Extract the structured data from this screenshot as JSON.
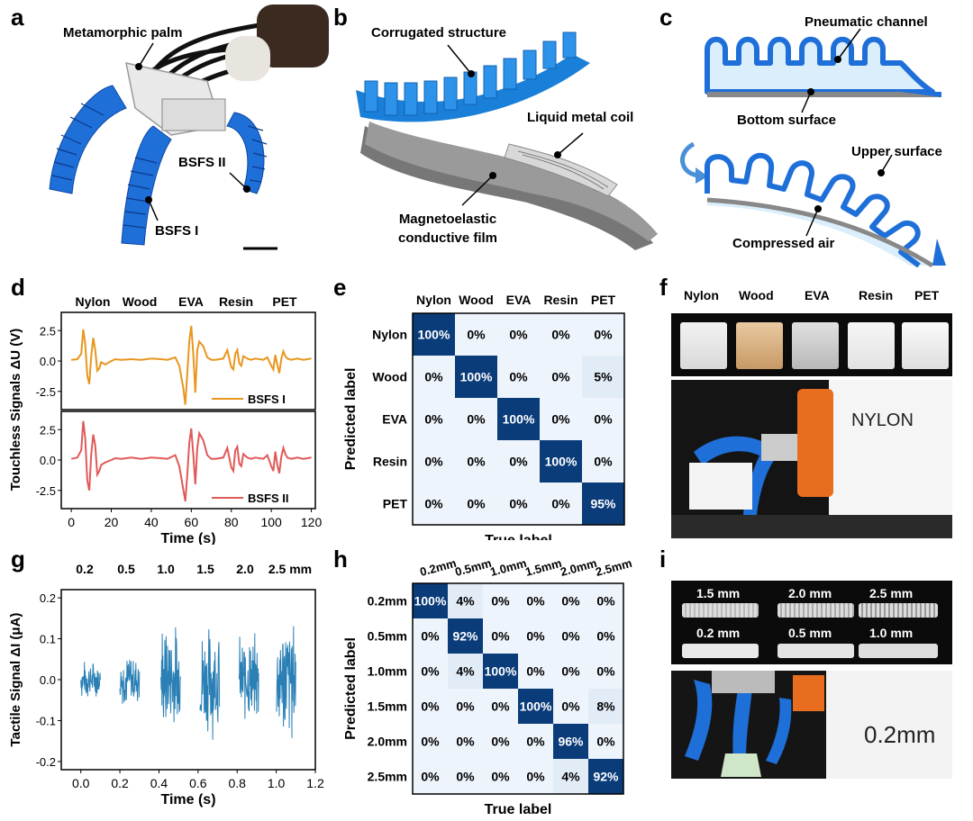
{
  "panels": {
    "a": "a",
    "b": "b",
    "c": "c",
    "d": "d",
    "e": "e",
    "f": "f",
    "g": "g",
    "h": "h",
    "i": "i"
  },
  "panel_a": {
    "metamorphic_palm": "Metamorphic palm",
    "bsfs_ii": "BSFS II",
    "bsfs_i": "BSFS I"
  },
  "panel_b": {
    "corrugated": "Corrugated structure",
    "liquid_metal": "Liquid metal coil",
    "film_line1": "Magnetoelastic",
    "film_line2": "conductive film"
  },
  "panel_c": {
    "pneumatic": "Pneumatic channel",
    "bottom": "Bottom surface",
    "upper": "Upper surface",
    "compressed": "Compressed air"
  },
  "panel_f": {
    "materials": [
      "Nylon",
      "Wood",
      "EVA",
      "Resin",
      "PET"
    ],
    "sign": "NYLON"
  },
  "panel_i": {
    "top_row": [
      "1.5 mm",
      "2.0 mm",
      "2.5 mm"
    ],
    "bottom_row": [
      "0.2 mm",
      "0.5 mm",
      "1.0 mm"
    ],
    "sign": "0.2mm"
  },
  "colors": {
    "bsfs_i": "#E8961E",
    "bsfs_ii": "#E05A5A",
    "tactile": "#2A7FB5",
    "matrix_dark": "#0B3C7A",
    "matrix_light": "#EEF4FB",
    "gripper_blue": "#1F6FD9"
  },
  "chart_data": [
    {
      "type": "line",
      "panel": "d",
      "top_labels": [
        "Nylon",
        "Wood",
        "EVA",
        "Resin",
        "PET"
      ],
      "ylabel": "Touchless Signals ΔU (V)",
      "xlabel": "Time (s)",
      "xlim": [
        -5,
        122
      ],
      "xticks": [
        "0",
        "20",
        "40",
        "60",
        "80",
        "100",
        "120"
      ],
      "subplots": [
        {
          "name": "BSFS I",
          "ylim": [
            -4,
            4
          ],
          "yticks": [
            "2.5",
            "0.0",
            "-2.5"
          ],
          "x": [
            0,
            3,
            5,
            6,
            7,
            8,
            9,
            10,
            11,
            12,
            13,
            14,
            15,
            17,
            20,
            22,
            25,
            30,
            35,
            40,
            45,
            48,
            52,
            54,
            56,
            57,
            58,
            59,
            60,
            61,
            62,
            63,
            64,
            66,
            68,
            70,
            72,
            76,
            78,
            80,
            81,
            82,
            83,
            84,
            85,
            86,
            88,
            90,
            92,
            96,
            98,
            100,
            101,
            102,
            103,
            104,
            105,
            106,
            107,
            108,
            110,
            113,
            116,
            120
          ],
          "values": [
            0.1,
            0.15,
            0.6,
            2.6,
            1.4,
            -1.2,
            -1.9,
            0.4,
            1.9,
            0.9,
            -0.8,
            -0.6,
            -0.1,
            -0.3,
            0.0,
            0.15,
            0.1,
            0.15,
            0.1,
            0.2,
            0.15,
            0.1,
            0.3,
            -0.4,
            -2.2,
            -3.6,
            -1.0,
            1.6,
            2.9,
            0.5,
            -2.6,
            0.9,
            1.6,
            1.2,
            0.3,
            0.1,
            0.1,
            0.2,
            0.9,
            -0.5,
            -0.7,
            0.6,
            0.9,
            -0.2,
            -0.4,
            0.4,
            0.2,
            0.1,
            0.2,
            0.1,
            0.3,
            -0.4,
            -0.7,
            0.5,
            -0.3,
            -1.0,
            0.2,
            0.8,
            0.4,
            0.2,
            0.1,
            0.2,
            0.1,
            0.2
          ]
        },
        {
          "name": "BSFS II",
          "ylim": [
            -4,
            4
          ],
          "yticks": [
            "2.5",
            "0.0",
            "-2.5"
          ],
          "x": [
            0,
            3,
            5,
            6,
            7,
            8,
            9,
            10,
            11,
            12,
            13,
            14,
            15,
            17,
            20,
            22,
            25,
            30,
            35,
            40,
            45,
            48,
            52,
            54,
            56,
            57,
            58,
            59,
            60,
            61,
            62,
            63,
            64,
            66,
            68,
            70,
            72,
            76,
            78,
            80,
            81,
            82,
            83,
            84,
            85,
            86,
            88,
            90,
            92,
            96,
            98,
            100,
            101,
            102,
            103,
            104,
            105,
            106,
            107,
            108,
            110,
            113,
            116,
            120
          ],
          "values": [
            0.1,
            0.2,
            0.8,
            3.2,
            1.8,
            -1.7,
            -2.5,
            0.5,
            2.1,
            1.2,
            -1.2,
            -0.9,
            -0.4,
            -0.2,
            0.0,
            0.15,
            0.1,
            0.2,
            0.1,
            0.2,
            0.15,
            0.1,
            0.4,
            -0.5,
            -2.4,
            -3.4,
            -1.2,
            1.4,
            2.6,
            0.4,
            -2.0,
            1.0,
            2.2,
            1.6,
            0.4,
            0.1,
            0.1,
            0.2,
            1.0,
            -0.6,
            -0.9,
            0.8,
            1.1,
            -0.3,
            -0.5,
            0.5,
            0.2,
            0.1,
            0.2,
            0.1,
            0.4,
            -0.5,
            -0.9,
            0.7,
            -0.4,
            -1.1,
            0.3,
            1.0,
            0.5,
            0.2,
            0.1,
            0.2,
            0.1,
            0.2
          ]
        }
      ]
    },
    {
      "type": "heatmap",
      "panel": "e",
      "xlabel": "True label",
      "ylabel": "Predicted label",
      "x_categories": [
        "Nylon",
        "Wood",
        "EVA",
        "Resin",
        "PET"
      ],
      "y_categories": [
        "Nylon",
        "Wood",
        "EVA",
        "Resin",
        "PET"
      ],
      "values": [
        [
          100,
          0,
          0,
          0,
          0
        ],
        [
          0,
          100,
          0,
          0,
          5
        ],
        [
          0,
          0,
          100,
          0,
          0
        ],
        [
          0,
          0,
          0,
          100,
          0
        ],
        [
          0,
          0,
          0,
          0,
          95
        ]
      ],
      "cell_labels": [
        [
          "100%",
          "0%",
          "0%",
          "0%",
          "0%"
        ],
        [
          "0%",
          "100%",
          "0%",
          "0%",
          "5%"
        ],
        [
          "0%",
          "0%",
          "100%",
          "0%",
          "0%"
        ],
        [
          "0%",
          "0%",
          "0%",
          "100%",
          "0%"
        ],
        [
          "0%",
          "0%",
          "0%",
          "0%",
          "95%"
        ]
      ]
    },
    {
      "type": "line",
      "panel": "g",
      "top_labels": [
        "0.2",
        "0.5",
        "1.0",
        "1.5",
        "2.0",
        "2.5 mm"
      ],
      "ylabel": "Tactile Signal ΔI (μA)",
      "xlabel": "Time (s)",
      "xlim": [
        -0.1,
        1.2
      ],
      "ylim": [
        -0.22,
        0.22
      ],
      "xticks": [
        "0.0",
        "0.2",
        "0.4",
        "0.6",
        "0.8",
        "1.0",
        "1.2"
      ],
      "yticks": [
        "0.2",
        "0.1",
        "0.0",
        "-0.1",
        "-0.2"
      ],
      "segments": [
        {
          "start": 0.0,
          "end": 0.1,
          "amplitude": 0.05
        },
        {
          "start": 0.2,
          "end": 0.3,
          "amplitude": 0.07
        },
        {
          "start": 0.41,
          "end": 0.51,
          "amplitude": 0.15
        },
        {
          "start": 0.61,
          "end": 0.71,
          "amplitude": 0.15
        },
        {
          "start": 0.81,
          "end": 0.91,
          "amplitude": 0.12
        },
        {
          "start": 1.0,
          "end": 1.1,
          "amplitude": 0.17
        }
      ]
    },
    {
      "type": "heatmap",
      "panel": "h",
      "xlabel": "True label",
      "ylabel": "Predicted label",
      "x_categories": [
        "0.2mm",
        "0.5mm",
        "1.0mm",
        "1.5mm",
        "2.0mm",
        "2.5mm"
      ],
      "y_categories": [
        "0.2mm",
        "0.5mm",
        "1.0mm",
        "1.5mm",
        "2.0mm",
        "2.5mm"
      ],
      "values": [
        [
          100,
          4,
          0,
          0,
          0,
          0
        ],
        [
          0,
          92,
          0,
          0,
          0,
          0
        ],
        [
          0,
          4,
          100,
          0,
          0,
          0
        ],
        [
          0,
          0,
          0,
          100,
          0,
          8
        ],
        [
          0,
          0,
          0,
          0,
          96,
          0
        ],
        [
          0,
          0,
          0,
          0,
          4,
          92
        ]
      ],
      "cell_labels": [
        [
          "100%",
          "4%",
          "0%",
          "0%",
          "0%",
          "0%"
        ],
        [
          "0%",
          "92%",
          "0%",
          "0%",
          "0%",
          "0%"
        ],
        [
          "0%",
          "4%",
          "100%",
          "0%",
          "0%",
          "0%"
        ],
        [
          "0%",
          "0%",
          "0%",
          "100%",
          "0%",
          "8%"
        ],
        [
          "0%",
          "0%",
          "0%",
          "0%",
          "96%",
          "0%"
        ],
        [
          "0%",
          "0%",
          "0%",
          "0%",
          "4%",
          "92%"
        ]
      ]
    }
  ]
}
